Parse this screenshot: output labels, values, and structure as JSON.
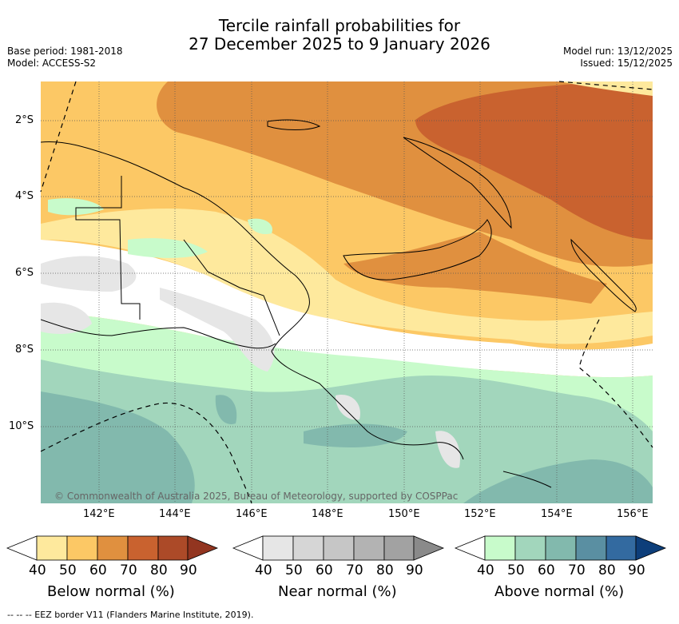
{
  "title": {
    "line1": "Tercile rainfall probabilities for",
    "line2": "27 December 2025 to 9 January 2026"
  },
  "meta": {
    "base_period": "Base period: 1981-2018",
    "model": "Model: ACCESS-S2",
    "model_run": "Model run: 13/12/2025",
    "issued": "Issued: 15/12/2025"
  },
  "map": {
    "lat_labels": [
      "2°S",
      "4°S",
      "6°S",
      "8°S",
      "10°S"
    ],
    "lon_labels": [
      "142°E",
      "144°E",
      "146°E",
      "148°E",
      "150°E",
      "152°E",
      "154°E",
      "156°E"
    ],
    "copyright": "© Commonwealth of Australia 2025, Bureau of Meteorology, supported by COSPPac"
  },
  "colorbars": [
    {
      "title": "Below normal (%)",
      "ticks": [
        "40",
        "50",
        "60",
        "70",
        "80",
        "90"
      ],
      "colors": [
        "#ffffff",
        "#fee99d",
        "#fcc865",
        "#e0903f",
        "#c9622f",
        "#ac4a28",
        "#923520"
      ]
    },
    {
      "title": "Near normal (%)",
      "ticks": [
        "40",
        "50",
        "60",
        "70",
        "80",
        "90"
      ],
      "colors": [
        "#ffffff",
        "#e6e6e6",
        "#d6d6d6",
        "#c6c6c6",
        "#b3b3b3",
        "#a2a2a2",
        "#8a8a8a"
      ]
    },
    {
      "title": "Above normal (%)",
      "ticks": [
        "40",
        "50",
        "60",
        "70",
        "80",
        "90"
      ],
      "colors": [
        "#ffffff",
        "#c8fbcb",
        "#a2d6bc",
        "#82b9ad",
        "#5a8fa2",
        "#336aa0",
        "#0d3e7a"
      ]
    }
  ],
  "footer": "--  --  -- EEZ border V11 (Flanders Marine Institute, 2019)."
}
